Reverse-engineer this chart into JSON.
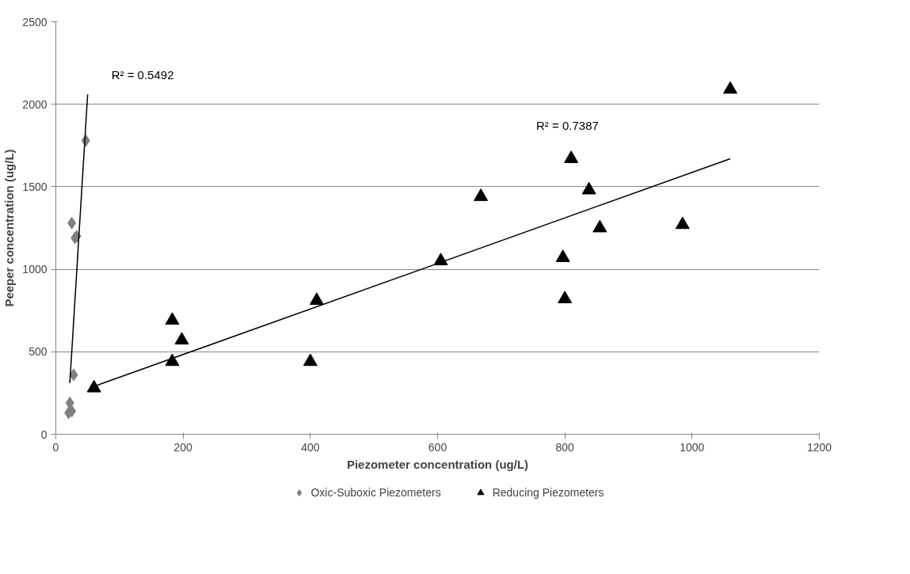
{
  "chart_data": {
    "type": "scatter",
    "xlabel": "Piezometer concentration (ug/L)",
    "ylabel": "Peeper concentration (ug/L)",
    "xlim": [
      0,
      1200
    ],
    "xticks": [
      0,
      200,
      400,
      600,
      800,
      1000,
      1200
    ],
    "ylim": [
      0,
      2500
    ],
    "yticks": [
      0,
      500,
      1000,
      1500,
      2000,
      2500
    ],
    "grid": "y",
    "legend": "bottom",
    "series": [
      {
        "name": "Oxic-Suboxic Piezometers",
        "color": "#808080",
        "marker": "diamond",
        "x": [
          47,
          25,
          30,
          33,
          28,
          22,
          25,
          20
        ],
        "values": [
          1780,
          1280,
          1190,
          1200,
          360,
          190,
          140,
          130
        ]
      },
      {
        "name": "Reducing Piezometers",
        "color": "#000000",
        "marker": "triangle",
        "x": [
          60,
          183,
          183,
          198,
          400,
          410,
          605,
          668,
          797,
          800,
          810,
          838,
          855,
          985,
          1060
        ],
        "values": [
          280,
          440,
          690,
          570,
          440,
          810,
          1050,
          1440,
          1070,
          820,
          1670,
          1480,
          1250,
          1270,
          2090
        ]
      },
      {
        "type": "line",
        "color": "#000000",
        "x": [
          22,
          50
        ],
        "values": [
          310,
          2060
        ]
      },
      {
        "type": "line",
        "color": "#000000",
        "x": [
          60,
          1060
        ],
        "values": [
          290,
          1670
        ]
      }
    ],
    "annotations": [
      "R² = 0.5492",
      "R² = 0.7387"
    ]
  }
}
